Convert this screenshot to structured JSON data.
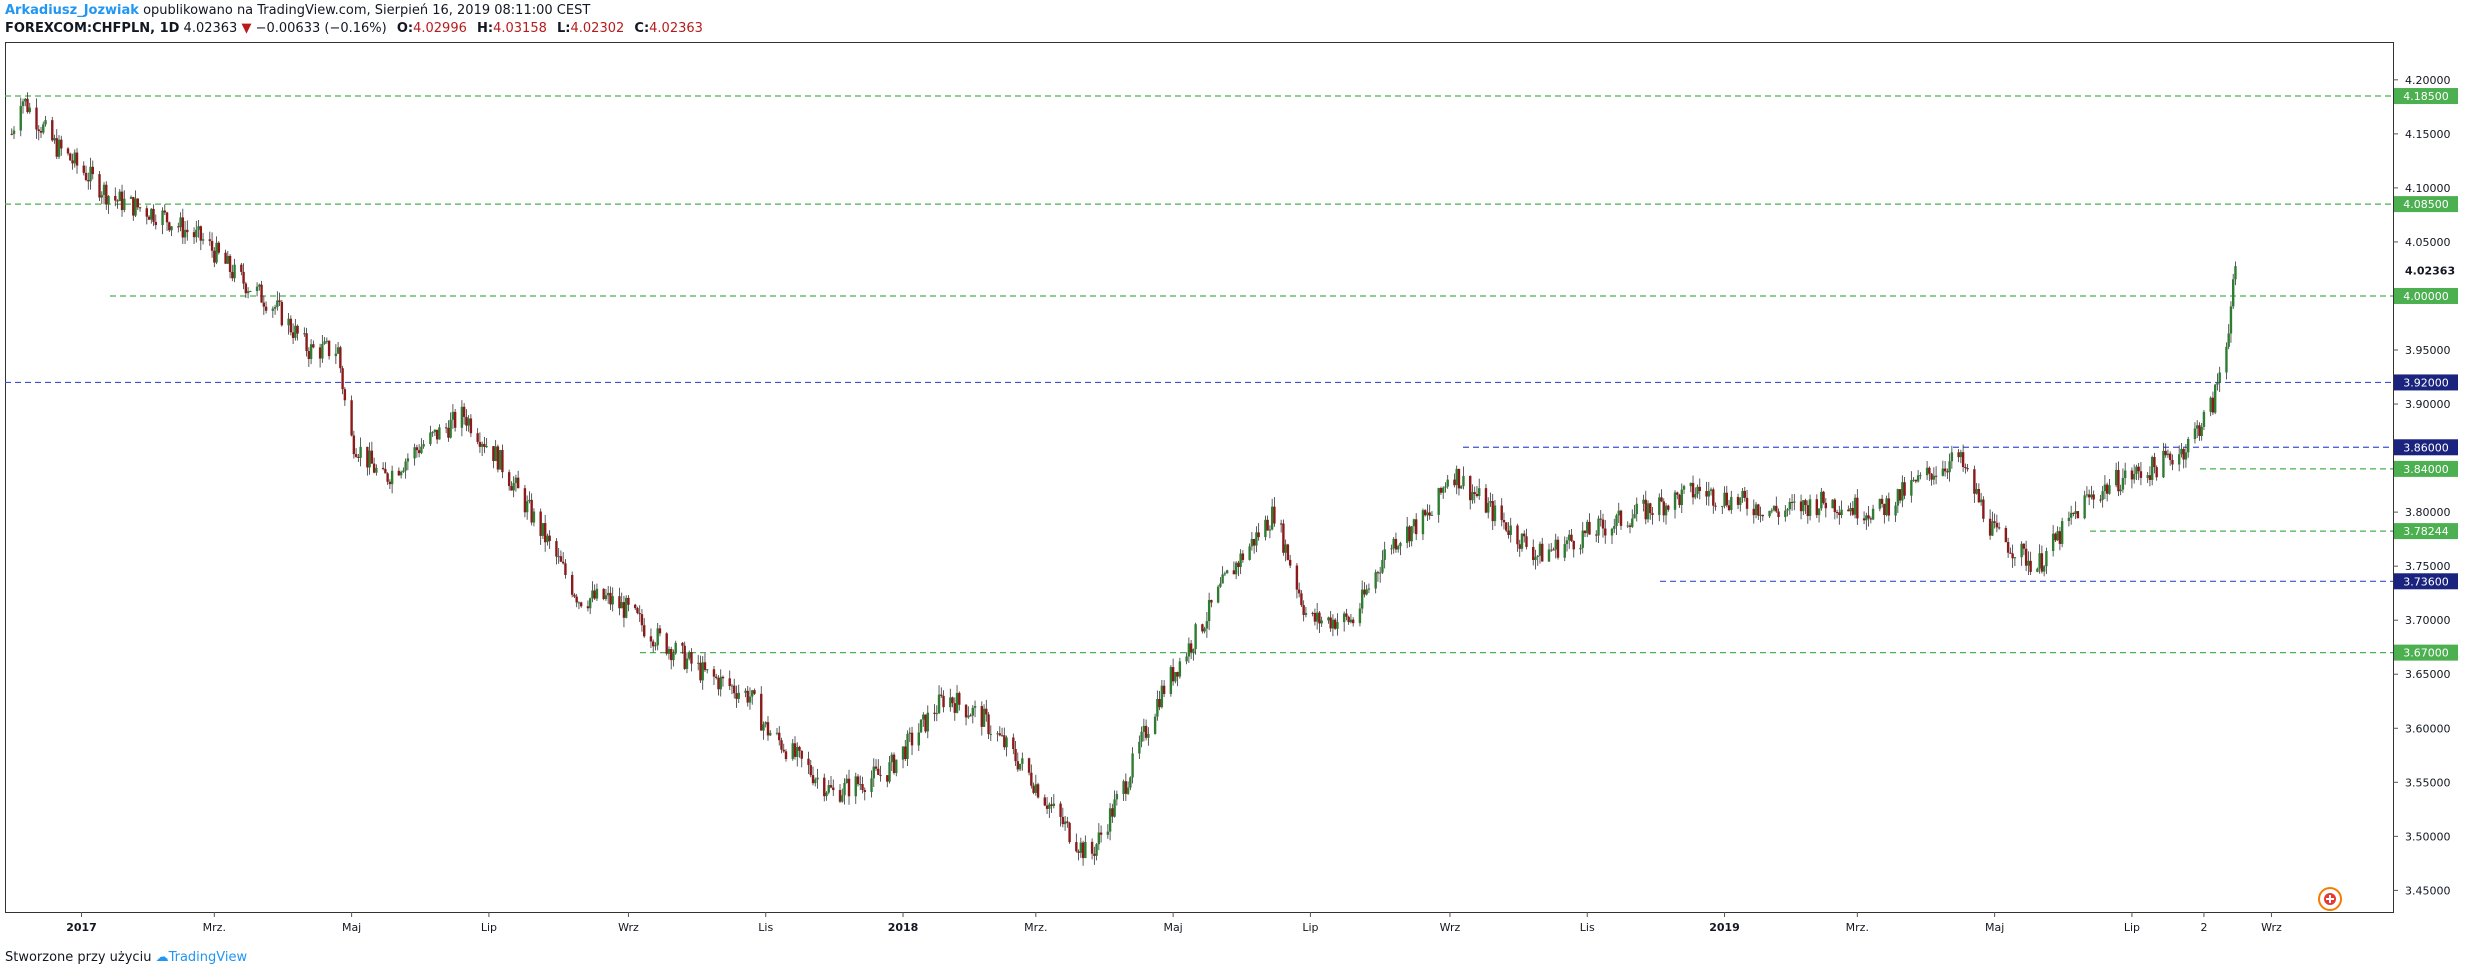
{
  "header": {
    "author": "Arkadiusz_Jozwiak",
    "published": "opublikowano na TradingView.com, Sierpień 16, 2019 08:11:00 CEST",
    "symbol": "FOREXCOM:CHFPLN, 1D",
    "last": "4.02363",
    "change": "−0.00633 (−0.16%)",
    "o_label": "O:",
    "o_value": "4.02996",
    "h_label": "H:",
    "h_value": "4.03158",
    "l_label": "L:",
    "l_value": "4.02302",
    "c_label": "C:",
    "c_value": "4.02363"
  },
  "footer": {
    "made_with": "Stworzone przy użyciu",
    "brand": "TradingView"
  },
  "colors": {
    "up": "#2e7d32",
    "down": "#8b1a1a",
    "green_line": "#4caf50",
    "blue_line": "#3f51d0",
    "price_badge_green": "#4caf50",
    "price_badge_blue": "#1a237e"
  },
  "chart_data": {
    "type": "candlestick",
    "ylim": [
      3.43,
      4.235
    ],
    "y_ticks": [
      "4.20000",
      "4.15000",
      "4.10000",
      "4.05000",
      "3.95000",
      "3.90000",
      "3.80000",
      "3.75000",
      "3.70000",
      "3.65000",
      "3.60000",
      "3.55000",
      "3.50000",
      "3.45000"
    ],
    "x_ticks": [
      "2017",
      "Mrz.",
      "Maj",
      "Lip",
      "Wrz",
      "Lis",
      "2018",
      "Mrz.",
      "Maj",
      "Lip",
      "Wrz",
      "Lis",
      "2019",
      "Mrz.",
      "Maj",
      "Lip",
      "2",
      "Wrz"
    ],
    "current_price": "4.02363",
    "series_anchors": {
      "x": [
        "2016-12-01",
        "2016-12-05",
        "2016-12-20",
        "2017-01-15",
        "2017-02-05",
        "2017-02-25",
        "2017-03-10",
        "2017-03-28",
        "2017-04-12",
        "2017-04-25",
        "2017-04-30",
        "2017-05-15",
        "2017-05-31",
        "2017-06-20",
        "2017-07-05",
        "2017-07-25",
        "2017-08-10",
        "2017-08-22",
        "2017-08-31",
        "2017-09-10",
        "2017-10-05",
        "2017-10-25",
        "2017-11-01",
        "2017-12-01",
        "2017-12-25",
        "2018-01-20",
        "2018-02-05",
        "2018-02-25",
        "2018-03-10",
        "2018-03-25",
        "2018-04-10",
        "2018-04-25",
        "2018-05-15",
        "2018-05-25",
        "2018-06-15",
        "2018-06-30",
        "2018-07-20",
        "2018-08-05",
        "2018-08-25",
        "2018-09-01",
        "2018-09-20",
        "2018-10-10",
        "2018-11-01",
        "2018-11-25",
        "2018-12-20",
        "2019-01-25",
        "2019-02-15",
        "2019-03-10",
        "2019-04-05",
        "2019-04-15",
        "2019-05-01",
        "2019-05-20",
        "2019-06-10",
        "2019-06-25",
        "2019-07-10",
        "2019-07-25",
        "2019-08-06",
        "2019-08-12",
        "2019-08-16"
      ],
      "y": [
        4.15,
        4.185,
        4.14,
        4.09,
        4.075,
        4.05,
        4.02,
        3.99,
        3.95,
        3.95,
        3.87,
        3.83,
        3.86,
        3.89,
        3.85,
        3.78,
        3.72,
        3.72,
        3.71,
        3.69,
        3.65,
        3.63,
        3.6,
        3.54,
        3.56,
        3.63,
        3.61,
        3.56,
        3.52,
        3.48,
        3.55,
        3.63,
        3.7,
        3.74,
        3.8,
        3.7,
        3.7,
        3.77,
        3.8,
        3.84,
        3.8,
        3.76,
        3.78,
        3.8,
        3.82,
        3.8,
        3.81,
        3.8,
        3.84,
        3.85,
        3.78,
        3.75,
        3.81,
        3.83,
        3.84,
        3.86,
        3.9,
        3.96,
        4.02
      ]
    },
    "levels": [
      {
        "value": "4.18500",
        "price": 4.185,
        "color": "green"
      },
      {
        "value": "4.08500",
        "price": 4.085,
        "color": "green"
      },
      {
        "value": "4.00000",
        "price": 4.0,
        "color": "green"
      },
      {
        "value": "3.92000",
        "price": 3.92,
        "color": "blue"
      },
      {
        "value": "3.86000",
        "price": 3.86,
        "color": "blue"
      },
      {
        "value": "3.84000",
        "price": 3.84,
        "color": "green"
      },
      {
        "value": "3.78244",
        "price": 3.78244,
        "color": "green"
      },
      {
        "value": "3.73600",
        "price": 3.736,
        "color": "blue"
      },
      {
        "value": "3.67000",
        "price": 3.67,
        "color": "green"
      }
    ]
  }
}
